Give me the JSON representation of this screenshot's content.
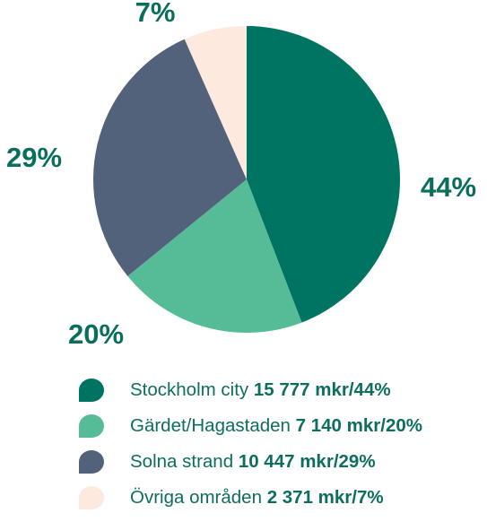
{
  "chart_data": {
    "type": "pie",
    "unit": "mkr",
    "slices": [
      {
        "label": "Stockholm city",
        "value": 15777,
        "value_text": "15 777 mkr/44%",
        "percent_text": "44%",
        "color": "#007462",
        "label_color": "#0a6e5c"
      },
      {
        "label": "Gärdet/Hagastaden",
        "value": 7140,
        "value_text": "7 140 mkr/20%",
        "percent_text": "20%",
        "color": "#56bc98",
        "label_color": "#0a6e5c"
      },
      {
        "label": "Solna strand",
        "value": 10447,
        "value_text": "10 447 mkr/29%",
        "percent_text": "29%",
        "color": "#52627b",
        "label_color": "#0a6e5c"
      },
      {
        "label": "Övriga områden",
        "value": 2371,
        "value_text": "2 371 mkr/7%",
        "percent_text": "7%",
        "color": "#fde9de",
        "label_color": "#0a6e5c"
      }
    ]
  }
}
